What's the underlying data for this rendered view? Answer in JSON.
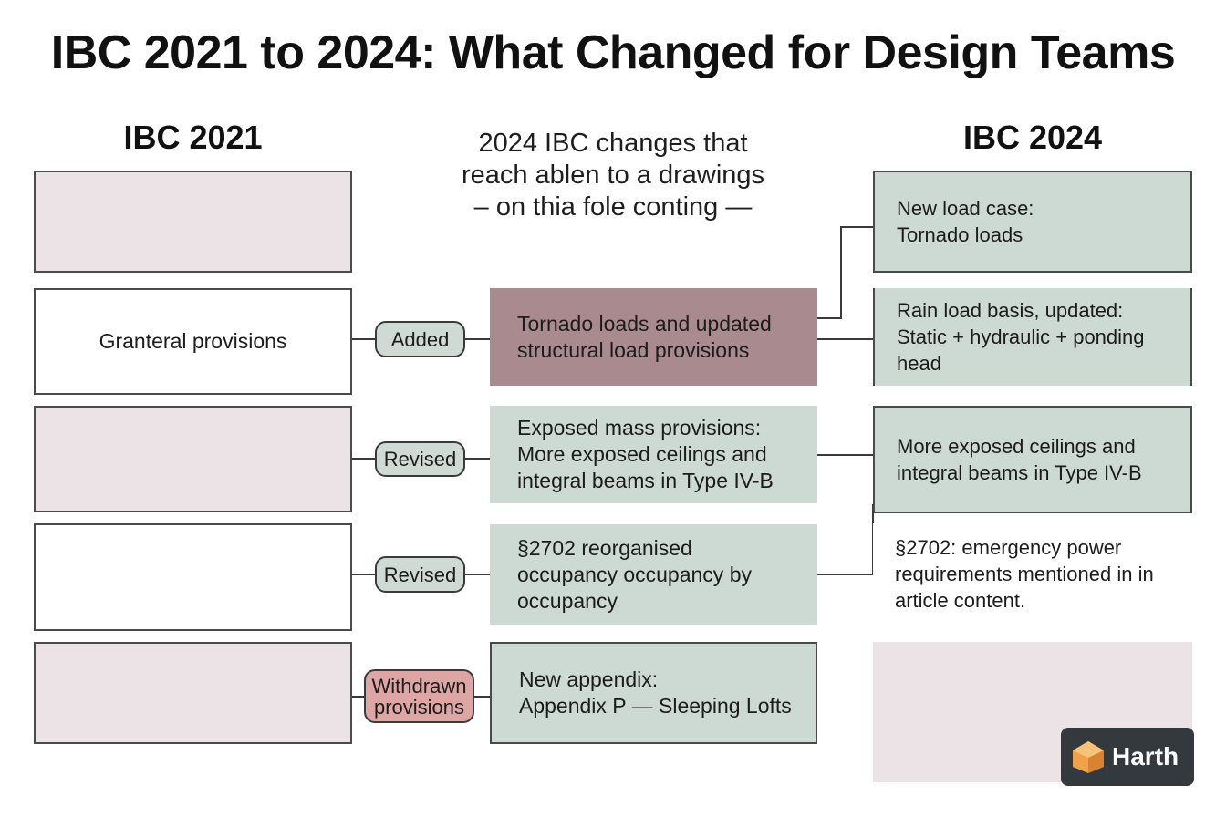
{
  "title": "IBC 2021 to 2024: What Changed for Design Teams",
  "left_column": {
    "heading": "IBC 2021",
    "boxes": [
      "",
      "Granteral provisions",
      "",
      "",
      ""
    ]
  },
  "middle_column": {
    "heading": "2024 IBC changes that\nreach ablen to a drawings\n– on thia fole conting —",
    "badges": [
      "Added",
      "Revised",
      "Revised",
      "Withdrawn\nprovisions"
    ],
    "boxes": [
      "Tornado loads and updated\nstructural load provisions",
      "Exposed mass provisions:\nMore exposed ceilings and\nintegral beams in Type IV-B",
      "§2702 reorganised\noccupancy occupancy by\noccupancy",
      "New appendix:\nAppendix P — Sleeping Lofts"
    ]
  },
  "right_column": {
    "heading": "IBC 2024",
    "boxes": [
      "New load case:\nTornado loads",
      "Rain load basis, updated:\nStatic + hydraulic + ponding head",
      "More exposed ceilings and\nintegral beams in Type IV-B",
      "§2702: emergency power\nrequirements mentioned in in\narticle content.",
      ""
    ]
  },
  "logo": {
    "text": "Harth",
    "icon": "house-cube-icon"
  },
  "colors": {
    "sage": "#cdd9d3",
    "rose": "#a98a8f",
    "pink_badge": "#dea5a5",
    "pale_pink": "#ece3e6",
    "logo_bg": "#33393d",
    "logo_accent": "#f0a24a"
  }
}
